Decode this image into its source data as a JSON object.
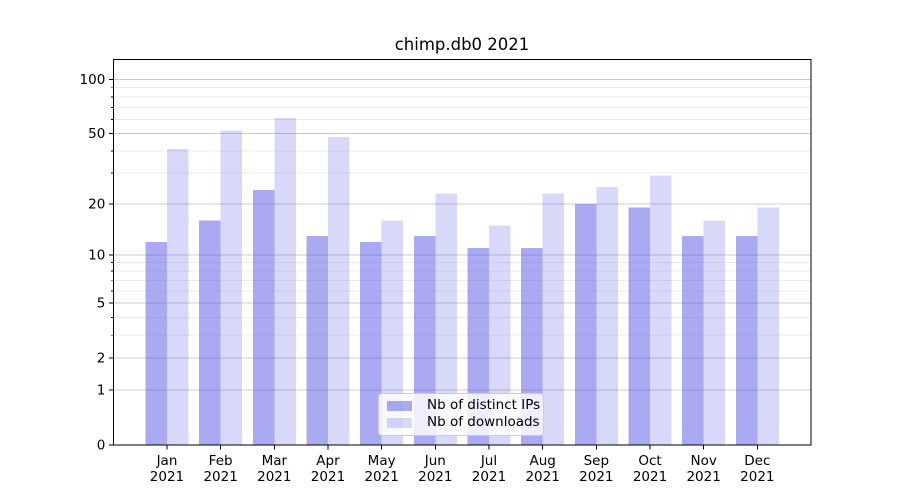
{
  "title": "chimp.db0 2021",
  "chart_data": {
    "type": "bar",
    "title": "chimp.db0 2021",
    "categories": [
      "Jan",
      "Feb",
      "Mar",
      "Apr",
      "May",
      "Jun",
      "Jul",
      "Aug",
      "Sep",
      "Oct",
      "Nov",
      "Dec"
    ],
    "category_year": "2021",
    "series": [
      {
        "name": "Nb of distinct IPs",
        "color": "#5555e6",
        "alpha": 0.5,
        "values": [
          12,
          16,
          24,
          13,
          12,
          13,
          11,
          11,
          20,
          19,
          13,
          13
        ]
      },
      {
        "name": "Nb of downloads",
        "color": "#5555e6",
        "alpha": 0.23,
        "values": [
          41,
          52,
          61,
          48,
          16,
          23,
          15,
          23,
          25,
          29,
          16,
          19
        ]
      }
    ],
    "xlabel": "",
    "ylabel": "",
    "yscale": "log1p",
    "ylim": [
      0,
      129
    ],
    "yticks": [
      0,
      1,
      2,
      5,
      10,
      20,
      50,
      100
    ],
    "yticks_minor": [
      3,
      4,
      6,
      7,
      8,
      9,
      30,
      40,
      60,
      70,
      80,
      90
    ],
    "grid": true,
    "legend_position": "lower center",
    "style": {
      "grid_major": "#cccccc",
      "grid_minor": "#ececec",
      "axis_color": "#000000",
      "background": "#ffffff"
    }
  }
}
